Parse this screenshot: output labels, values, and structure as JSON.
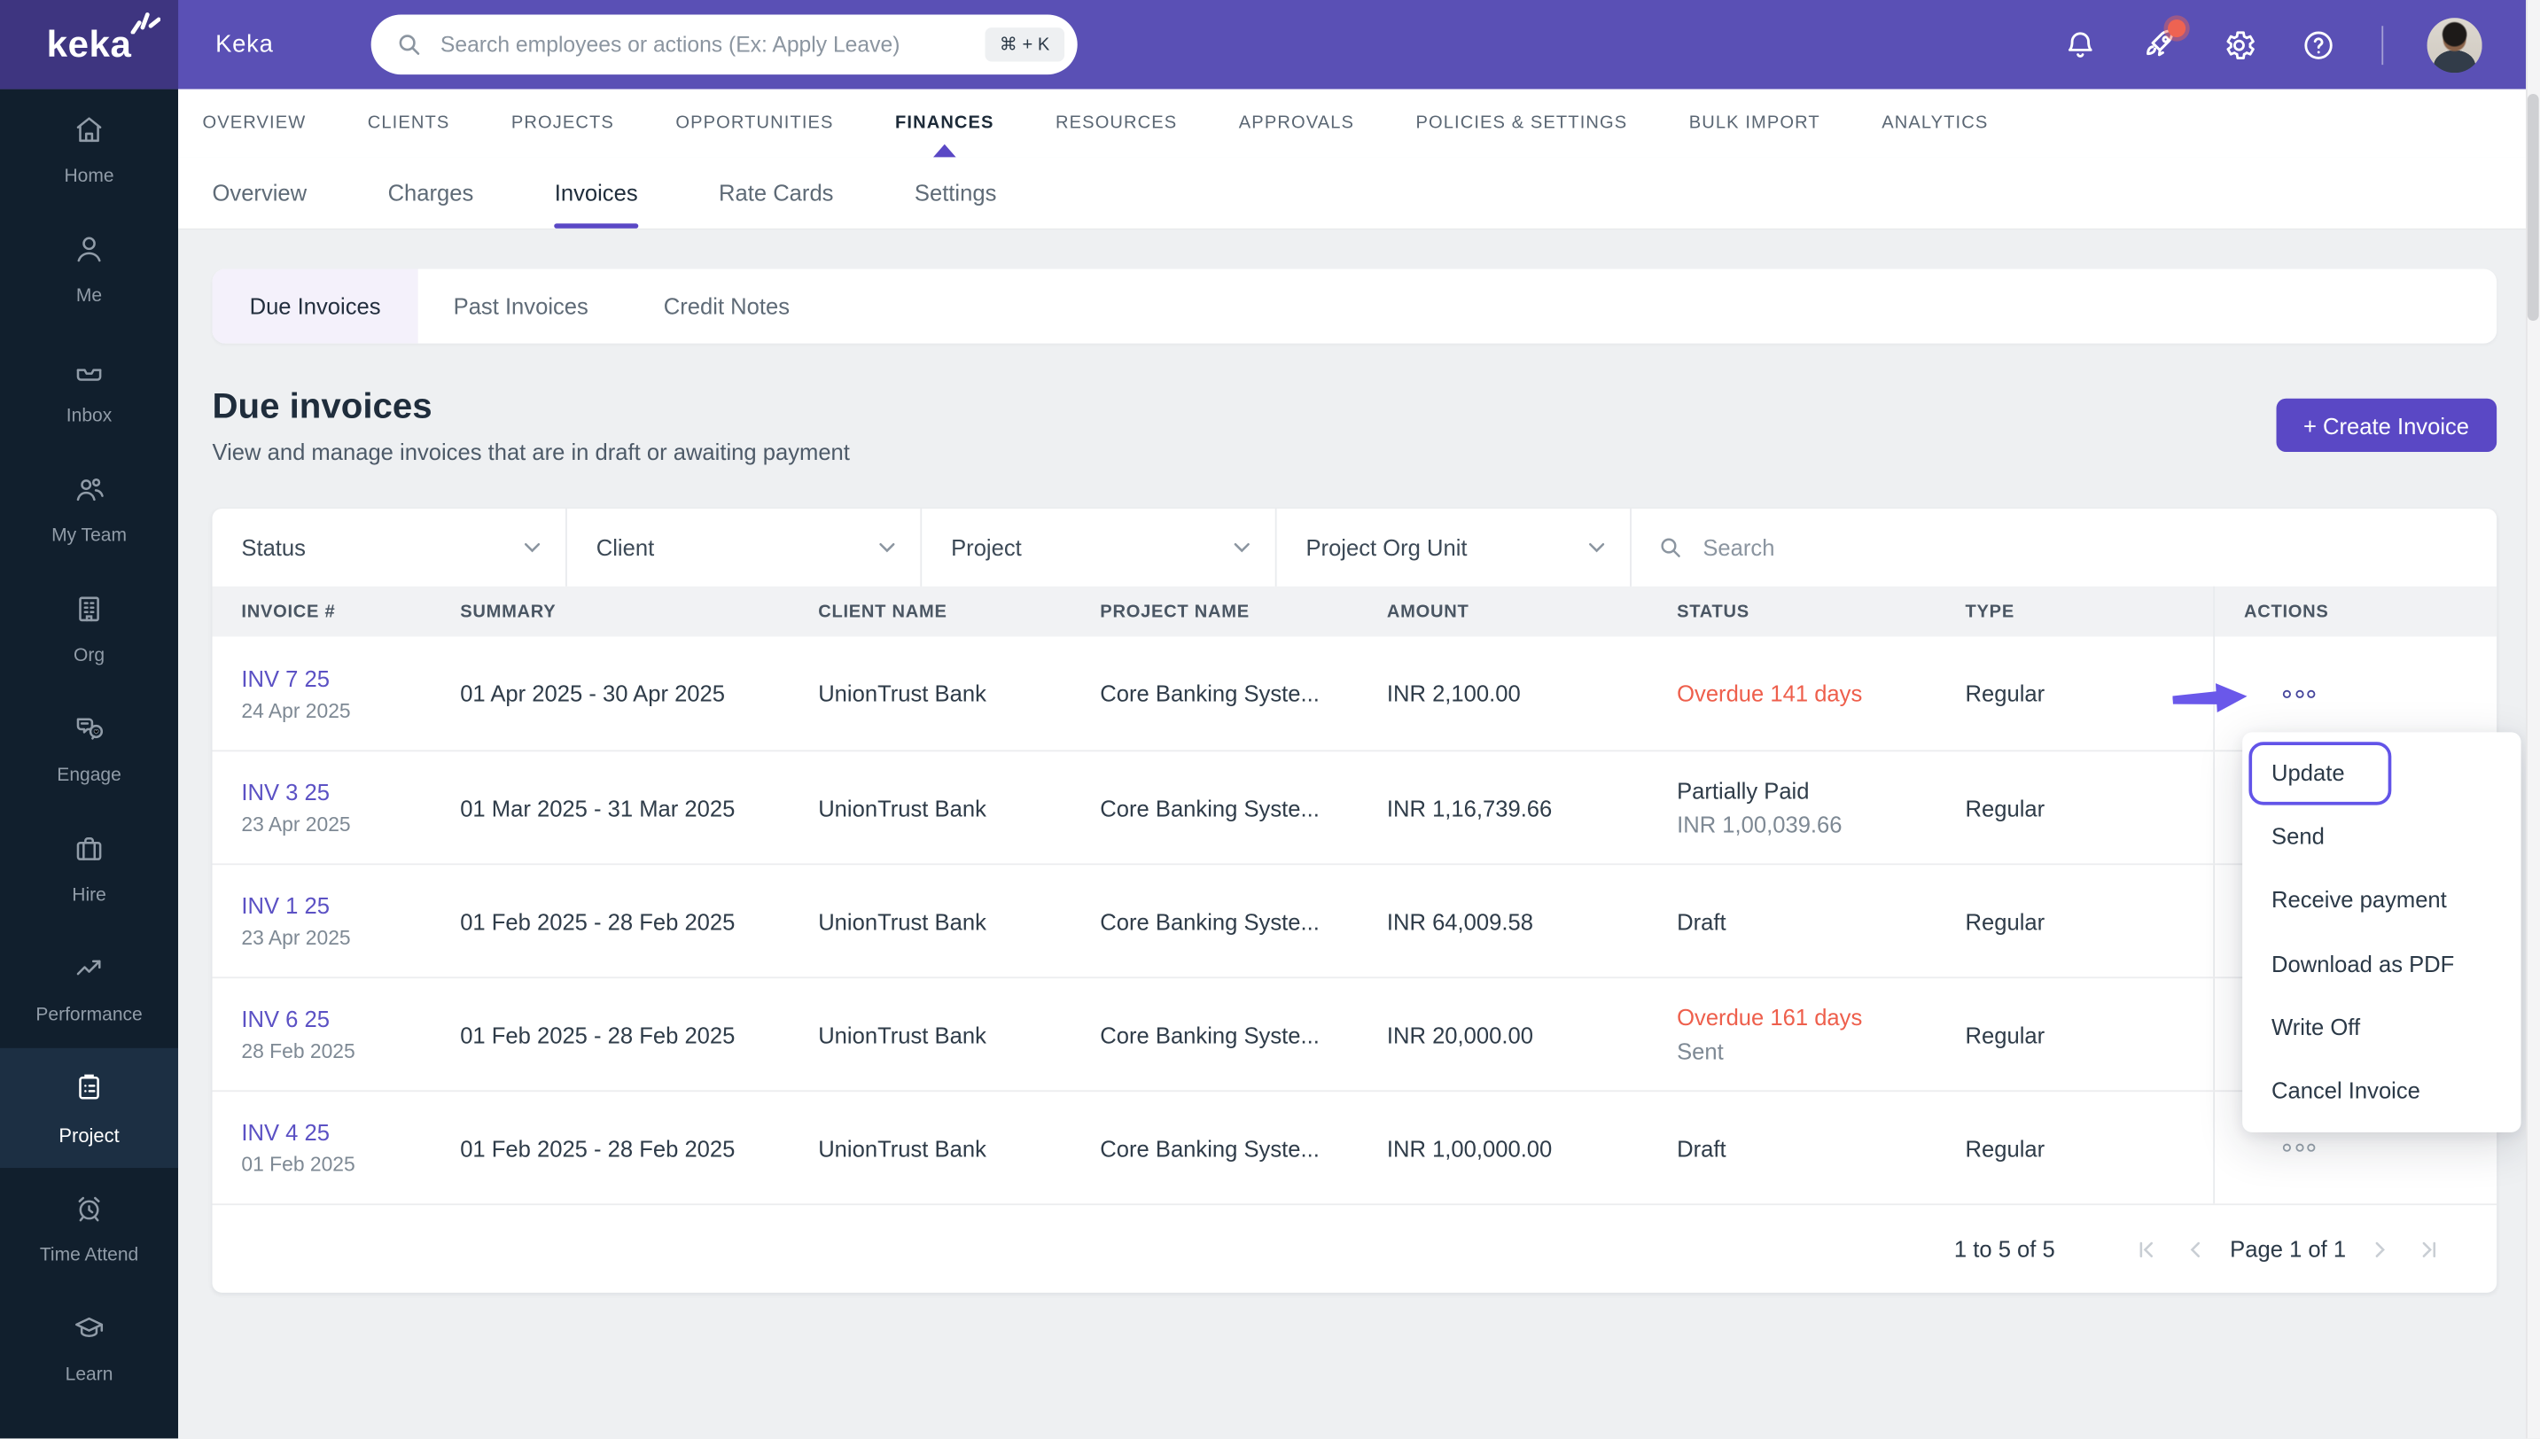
{
  "brand": {
    "logo_text": "keka",
    "app_name": "Keka"
  },
  "topbar": {
    "search_placeholder": "Search employees or actions (Ex: Apply Leave)",
    "search_shortcut": "⌘ + K"
  },
  "sidebar": {
    "items": [
      {
        "label": "Home",
        "icon": "home",
        "active": false
      },
      {
        "label": "Me",
        "icon": "user",
        "active": false
      },
      {
        "label": "Inbox",
        "icon": "inbox",
        "active": false
      },
      {
        "label": "My Team",
        "icon": "team",
        "active": false
      },
      {
        "label": "Org",
        "icon": "org",
        "active": false
      },
      {
        "label": "Engage",
        "icon": "engage",
        "active": false
      },
      {
        "label": "Hire",
        "icon": "hire",
        "active": false
      },
      {
        "label": "Performance",
        "icon": "performance",
        "active": false
      },
      {
        "label": "Project",
        "icon": "project",
        "active": true
      },
      {
        "label": "Time Attend",
        "icon": "time",
        "active": false
      },
      {
        "label": "Learn",
        "icon": "learn",
        "active": false
      }
    ]
  },
  "main_nav": {
    "items": [
      "OVERVIEW",
      "CLIENTS",
      "PROJECTS",
      "OPPORTUNITIES",
      "FINANCES",
      "RESOURCES",
      "APPROVALS",
      "POLICIES & SETTINGS",
      "BULK IMPORT",
      "ANALYTICS"
    ],
    "active": "FINANCES"
  },
  "sub_nav": {
    "items": [
      "Overview",
      "Charges",
      "Invoices",
      "Rate Cards",
      "Settings"
    ],
    "active": "Invoices"
  },
  "invoice_tabs": {
    "items": [
      "Due Invoices",
      "Past Invoices",
      "Credit Notes"
    ],
    "active": "Due Invoices"
  },
  "page": {
    "title": "Due invoices",
    "subtitle": "View and manage invoices that are in draft or awaiting payment",
    "create_button": "+ Create Invoice"
  },
  "filters": {
    "dropdowns": [
      "Status",
      "Client",
      "Project",
      "Project Org Unit"
    ],
    "search_placeholder": "Search"
  },
  "table": {
    "columns": [
      "INVOICE #",
      "SUMMARY",
      "CLIENT NAME",
      "PROJECT NAME",
      "AMOUNT",
      "STATUS",
      "TYPE",
      "ACTIONS"
    ],
    "rows": [
      {
        "invoice": "INV 7 25",
        "date": "24 Apr 2025",
        "summary": "01 Apr 2025 - 30 Apr 2025",
        "client": "UnionTrust Bank",
        "project": "Core Banking Syste...",
        "amount": "INR 2,100.00",
        "status": "Overdue 141 days",
        "status_kind": "overdue",
        "status_sub": "",
        "type": "Regular",
        "actions": "dots-highlight"
      },
      {
        "invoice": "INV 3 25",
        "date": "23 Apr 2025",
        "summary": "01 Mar 2025 - 31 Mar 2025",
        "client": "UnionTrust Bank",
        "project": "Core Banking Syste...",
        "amount": "INR 1,16,739.66",
        "status": "Partially Paid",
        "status_kind": "normal",
        "status_sub": "INR 1,00,039.66",
        "type": "Regular",
        "actions": "hidden"
      },
      {
        "invoice": "INV 1 25",
        "date": "23 Apr 2025",
        "summary": "01 Feb 2025 - 28 Feb 2025",
        "client": "UnionTrust Bank",
        "project": "Core Banking Syste...",
        "amount": "INR 64,009.58",
        "status": "Draft",
        "status_kind": "normal",
        "status_sub": "",
        "type": "Regular",
        "actions": "hidden"
      },
      {
        "invoice": "INV 6 25",
        "date": "28 Feb 2025",
        "summary": "01 Feb 2025 - 28 Feb 2025",
        "client": "UnionTrust Bank",
        "project": "Core Banking Syste...",
        "amount": "INR 20,000.00",
        "status": "Overdue 161 days",
        "status_kind": "overdue",
        "status_sub": "Sent",
        "type": "Regular",
        "actions": "hidden"
      },
      {
        "invoice": "INV 4 25",
        "date": "01 Feb 2025",
        "summary": "01 Feb 2025 - 28 Feb 2025",
        "client": "UnionTrust Bank",
        "project": "Core Banking Syste...",
        "amount": "INR 1,00,000.00",
        "status": "Draft",
        "status_kind": "normal",
        "status_sub": "",
        "type": "Regular",
        "actions": "dots"
      }
    ]
  },
  "context_menu": {
    "items": [
      "Update",
      "Send",
      "Receive payment",
      "Download as PDF",
      "Write Off",
      "Cancel Invoice"
    ],
    "highlighted": "Update"
  },
  "pagination": {
    "range_label": "1 to 5 of 5",
    "page_label": "Page 1 of 1"
  },
  "colors": {
    "brand_purple": "#5a48c5",
    "topbar_purple": "#5a50b5",
    "logo_purple": "#3e3580",
    "sidebar_navy": "#111f2d",
    "overdue_red": "#ee5f4c",
    "link_purple": "#5b51c4",
    "menu_highlight": "#6254e8",
    "badge_red": "#ee6352"
  }
}
